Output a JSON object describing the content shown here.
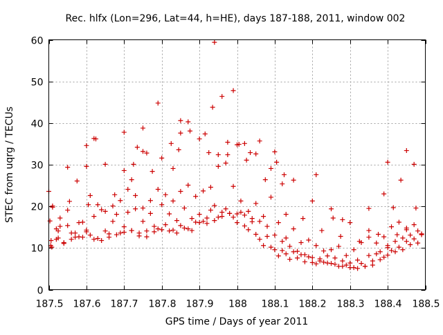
{
  "chart_data": {
    "type": "scatter",
    "title": "Rec. hlfx (Lon=296, Lat=44, h=HE), days 187-188, 2011, window 002",
    "xlabel": "GPS time / Days of year 2011",
    "ylabel": "STEC from uqrg / TECUs",
    "xlim": [
      187.5,
      188.5
    ],
    "ylim": [
      0,
      60
    ],
    "xticks": [
      "187.5",
      "187.6",
      "187.7",
      "187.8",
      "187.9",
      "188",
      "188.1",
      "188.2",
      "188.3",
      "188.4",
      "188.5"
    ],
    "yticks": [
      "0",
      "10",
      "20",
      "30",
      "40",
      "50",
      "60"
    ],
    "grid": true,
    "marker": "+",
    "color": "#cc0000",
    "x": [
      187.503,
      187.506,
      187.508,
      187.51,
      187.52,
      187.525,
      187.53,
      187.54,
      187.55,
      187.555,
      187.56,
      187.57,
      187.58,
      187.59,
      187.6,
      187.605,
      187.61,
      187.62,
      187.63,
      187.64,
      187.65,
      187.66,
      187.67,
      187.68,
      187.69,
      187.7,
      187.71,
      187.72,
      187.73,
      187.74,
      187.75,
      187.76,
      187.77,
      187.78,
      187.79,
      187.8,
      187.81,
      187.82,
      187.83,
      187.84,
      187.85,
      187.86,
      187.87,
      187.88,
      187.89,
      187.9,
      187.91,
      187.92,
      187.93,
      187.94,
      187.95,
      187.96,
      187.97,
      187.98,
      187.99,
      188.0,
      188.01,
      188.02,
      188.03,
      188.04,
      188.05,
      188.06,
      188.07,
      188.08,
      188.09,
      188.1,
      188.11,
      188.12,
      188.13,
      188.14,
      188.15,
      188.16,
      188.17,
      188.18,
      188.19,
      188.2,
      188.21,
      188.22,
      188.23,
      188.24,
      188.25,
      188.26,
      188.27,
      188.28,
      188.29,
      188.3,
      188.31,
      188.32,
      188.33,
      188.34,
      188.35,
      188.36,
      188.37,
      188.38,
      188.39,
      188.4,
      188.41,
      188.42,
      188.43,
      188.44,
      188.45,
      188.46,
      188.47,
      188.48,
      188.49,
      187.505,
      187.52,
      187.54,
      187.56,
      187.58,
      187.6,
      187.62,
      187.64,
      187.66,
      187.68,
      187.7,
      187.72,
      187.74,
      187.76,
      187.78,
      187.8,
      187.82,
      187.84,
      187.86,
      187.88,
      187.9,
      187.92,
      187.94,
      187.96,
      187.98,
      188.0,
      188.02,
      188.04,
      188.06,
      188.08,
      188.1,
      188.12,
      188.14,
      188.16,
      188.18,
      188.2,
      188.22,
      188.24,
      188.26,
      188.28,
      188.3,
      188.32,
      188.34,
      188.36,
      188.38,
      188.4,
      188.42,
      188.44,
      188.46,
      188.48,
      187.51,
      187.53,
      187.55,
      187.57,
      187.59,
      187.61,
      187.63,
      187.65,
      187.67,
      187.69,
      187.71,
      187.73,
      187.75,
      187.77,
      187.79,
      187.81,
      187.83,
      187.85,
      187.87,
      187.89,
      187.91,
      187.93,
      187.95,
      187.97,
      187.99,
      188.01,
      188.03,
      188.05,
      188.07,
      188.09,
      188.11,
      188.13,
      188.15,
      188.17,
      188.19,
      188.21,
      188.23,
      188.25,
      188.27,
      188.29,
      188.31,
      188.33,
      188.35,
      188.37,
      188.39,
      188.41,
      188.43,
      188.45,
      188.47,
      188.49,
      187.5,
      187.525,
      187.55,
      187.575,
      187.6,
      187.625,
      187.65,
      187.675,
      187.7,
      187.725,
      187.75,
      187.775,
      187.8,
      187.825,
      187.85,
      187.875,
      187.9,
      187.925,
      187.95,
      187.975,
      188.0,
      188.025,
      188.05,
      188.075,
      188.1,
      188.125,
      188.15,
      188.175,
      188.2,
      188.225,
      188.25,
      188.275,
      188.3,
      188.325,
      188.35,
      188.375,
      188.4,
      188.425,
      188.45,
      188.475,
      187.7,
      187.75,
      187.79,
      187.85,
      187.94,
      187.96,
      187.99,
      188.02,
      188.09,
      188.12,
      188.21,
      188.35,
      188.39,
      188.415,
      188.45,
      188.47,
      187.6,
      187.62,
      187.72,
      187.735,
      187.76,
      187.83,
      187.845,
      187.87,
      187.915,
      187.935,
      187.975,
      188.005,
      188.035,
      188.06,
      188.105,
      188.13,
      188.255,
      188.28,
      188.4,
      188.435
    ],
    "y": [
      16.5,
      11.8,
      10.2,
      20.1,
      14.6,
      12.4,
      17.2,
      11.1,
      15.4,
      21.2,
      12.1,
      13.6,
      16.1,
      12.6,
      14.3,
      20.4,
      13.1,
      17.6,
      12.3,
      19.2,
      14.1,
      12.6,
      16.4,
      18.1,
      13.6,
      15.1,
      18.6,
      14.2,
      19.4,
      13.6,
      16.4,
      14.1,
      18.3,
      15.2,
      14.6,
      20.4,
      15.6,
      18.2,
      14.3,
      16.6,
      15.4,
      19.6,
      14.6,
      17.1,
      16.2,
      18.1,
      16.4,
      17.2,
      19.1,
      20.2,
      17.4,
      18.6,
      19.4,
      18.3,
      17.4,
      16.1,
      18.6,
      15.3,
      14.4,
      17.1,
      13.3,
      12.1,
      10.6,
      12.8,
      10.2,
      9.6,
      8.1,
      9.4,
      8.6,
      7.3,
      9.1,
      7.6,
      8.4,
      6.7,
      7.9,
      6.5,
      6.2,
      7.4,
      6.6,
      8.1,
      6.3,
      7.6,
      5.6,
      6.9,
      5.9,
      6.4,
      5.3,
      7.1,
      6.3,
      5.6,
      8.2,
      6.9,
      8.6,
      9.1,
      7.8,
      10.1,
      9.4,
      11.6,
      10.2,
      12.4,
      11.6,
      13.1,
      12.2,
      14.1,
      13.4,
      10.6,
      12.1,
      11.3,
      13.6,
      12.7,
      13.9,
      12.1,
      11.8,
      13.4,
      13.2,
      13.8,
      14.2,
      12.9,
      12.7,
      13.9,
      14.4,
      14.1,
      13.6,
      14.8,
      14.2,
      16.1,
      15.9,
      16.6,
      17.6,
      18.3,
      18.2,
      17.9,
      16.3,
      16.4,
      15.2,
      13.1,
      11.6,
      10.4,
      9.2,
      8.4,
      7.7,
      6.9,
      6.4,
      6.1,
      5.6,
      5.3,
      5.1,
      5.6,
      5.9,
      7.2,
      8.3,
      9.1,
      9.6,
      10.8,
      11.2,
      19.8,
      15.2,
      19.1,
      12.6,
      16.2,
      22.6,
      20.4,
      18.8,
      20.1,
      21.4,
      24.1,
      22.6,
      19.6,
      21.4,
      24.1,
      22.8,
      21.3,
      23.6,
      25.1,
      22.4,
      23.7,
      24.6,
      29.6,
      30.4,
      24.8,
      21.3,
      18.8,
      20.7,
      17.6,
      22.2,
      16.1,
      12.4,
      14.6,
      11.3,
      11.9,
      10.6,
      9.3,
      9.6,
      10.4,
      8.2,
      9.6,
      11.3,
      12.6,
      11.2,
      12.7,
      15.1,
      16.2,
      14.8,
      15.6,
      13.2,
      23.6,
      14.1,
      29.4,
      26.1,
      34.6,
      36.2,
      30.1,
      22.8,
      28.6,
      30.1,
      33.2,
      28.4,
      31.6,
      35.1,
      37.6,
      38.1,
      36.2,
      32.9,
      32.4,
      35.4,
      34.8,
      31.1,
      32.6,
      26.4,
      33.1,
      27.6,
      26.3,
      17.1,
      21.3,
      14.2,
      19.4,
      12.8,
      16.1,
      11.6,
      14.2,
      13.3,
      10.6,
      13.2,
      14.4,
      19.6,
      37.8,
      38.8,
      44.8,
      40.6,
      59.4,
      46.4,
      47.8,
      35.1,
      29.1,
      25.4,
      27.6,
      19.5,
      23.0,
      19.7,
      33.4,
      30.1,
      29.6,
      36.3,
      26.4,
      34.2,
      32.8,
      29.1,
      33.6,
      40.3,
      37.4,
      43.8,
      32.4,
      34.9,
      32.9,
      35.7,
      30.6,
      18.1,
      17.2,
      16.8,
      30.6,
      26.3
    ]
  }
}
